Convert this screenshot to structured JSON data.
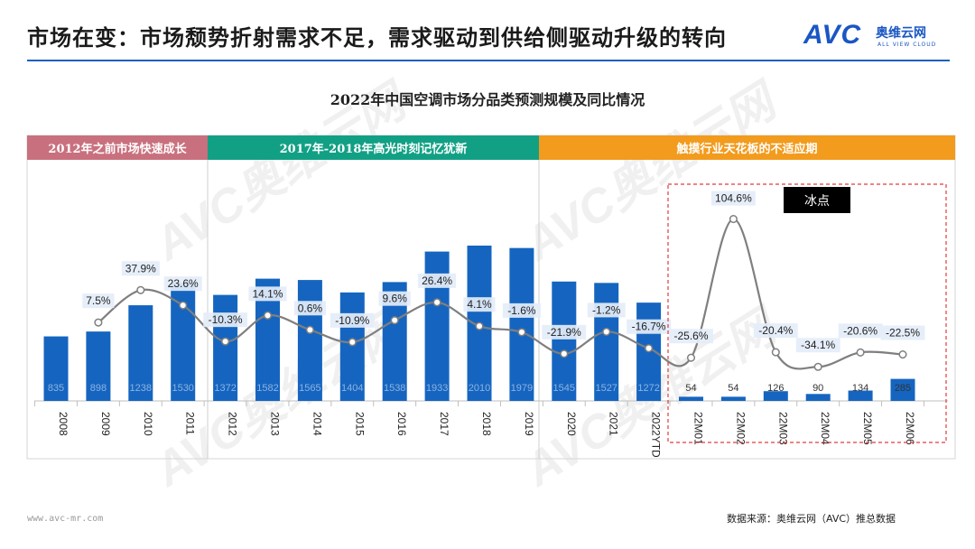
{
  "header": {
    "title": "市场在变：市场颓势折射需求不足，需求驱动到供给侧驱动升级的转向",
    "logo_text": "AVC",
    "logo_cn": "奥维云网",
    "logo_en": "ALL VIEW CLOUD",
    "accent_color": "#1f5fbf"
  },
  "watermark": {
    "text": "AVC奥维云网",
    "sub": "ALL VIEW CLOUD"
  },
  "chart_data": {
    "type": "bar",
    "title": "2022年中国空调市场分品类预测规模及同比情况",
    "categories": [
      "2008",
      "2009",
      "2010",
      "2011",
      "2012",
      "2013",
      "2014",
      "2015",
      "2016",
      "2017",
      "2018",
      "2019",
      "2020",
      "2021",
      "2022YTD",
      "22M01",
      "22M02",
      "22M03",
      "22M04",
      "22M05",
      "22M06"
    ],
    "series": [
      {
        "type": "bar",
        "values": [
          835,
          898,
          1238,
          1530,
          1372,
          1582,
          1565,
          1404,
          1538,
          1933,
          2010,
          1979,
          1545,
          1527,
          1272,
          54,
          54,
          126,
          90,
          134,
          285
        ],
        "labels": [
          "835",
          "898",
          "1238",
          "1530",
          "1372",
          "1582",
          "1565",
          "1404",
          "1538",
          "1933",
          "2010",
          "1979",
          "1545",
          "1527",
          "1272",
          "54",
          "54",
          "126",
          "90",
          "134",
          "285"
        ],
        "color": "#1565c0"
      },
      {
        "type": "line",
        "values": [
          null,
          7.5,
          37.9,
          23.6,
          -10.3,
          14.1,
          0.6,
          -10.9,
          9.6,
          26.4,
          4.1,
          -1.6,
          -21.9,
          -1.2,
          -16.7,
          -25.6,
          104.6,
          -20.4,
          -34.1,
          -20.6,
          -22.5
        ],
        "labels": [
          "",
          "7.5%",
          "37.9%",
          "23.6%",
          "-10.3%",
          "14.1%",
          "0.6%",
          "-10.9%",
          "9.6%",
          "26.4%",
          "4.1%",
          "-1.6%",
          "-21.9%",
          "-1.2%",
          "-16.7%",
          "-25.6%",
          "104.6%",
          "-20.4%",
          "-34.1%",
          "-20.6%",
          "-22.5%"
        ],
        "color": "#7f7f7f"
      }
    ],
    "phases": [
      {
        "label": "2012年之前市场快速成长",
        "color": "#c9707e"
      },
      {
        "label": "2017年-2018年高光时刻记忆犹新",
        "color": "#12a085"
      },
      {
        "label": "触摸行业天花板的不适应期",
        "color": "#f29b1d"
      }
    ],
    "annotation": "冰点",
    "highlight_color": "#e03c3c"
  },
  "footer": {
    "url": "www.avc-mr.com",
    "source": "数据来源：奥维云网（AVC）推总数据"
  }
}
